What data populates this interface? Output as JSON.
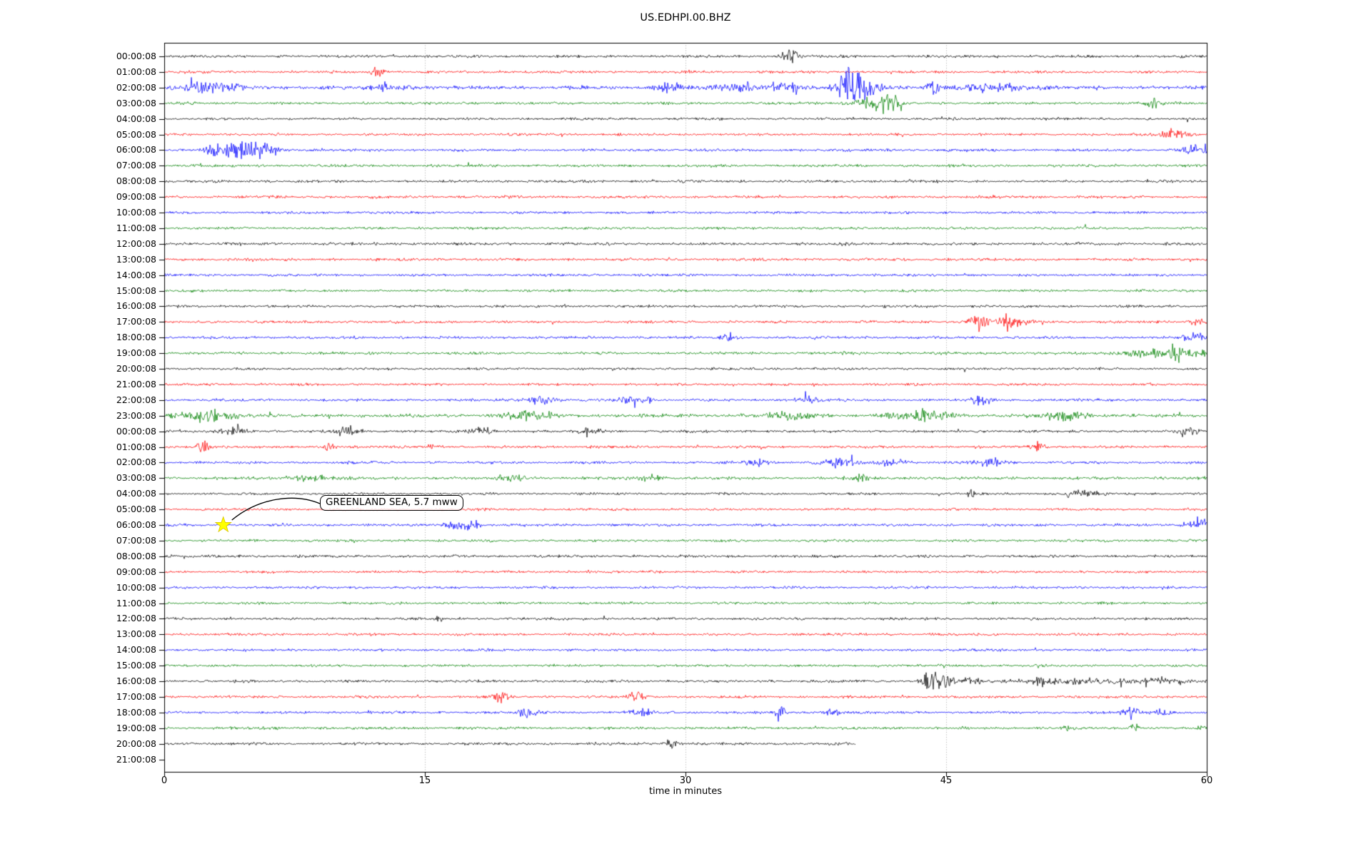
{
  "title": "US.EDHPI.00.BHZ",
  "chart_data": {
    "type": "line",
    "subtype": "seismic-helicorder-dayplot",
    "title": "US.EDHPI.00.BHZ",
    "xlabel": "time in minutes",
    "xlim": [
      0,
      60
    ],
    "xticks": [
      0,
      15,
      30,
      45,
      60
    ],
    "grid": {
      "vertical_dotted_at_minutes": [
        15,
        30,
        45
      ],
      "color": "#aaaaaa"
    },
    "trace_colors": {
      "black": "#000000",
      "red": "#ff0000",
      "blue": "#0000ff",
      "green": "#008000"
    },
    "legend_position": "none",
    "rows": [
      {
        "label": "00:00:08",
        "color": "black",
        "base": 1.0,
        "end": 60,
        "bursts": [
          [
            36,
            2.2,
            0.35
          ]
        ]
      },
      {
        "label": "01:00:08",
        "color": "red",
        "base": 1.0,
        "end": 60,
        "bursts": [
          [
            12.3,
            1.8,
            0.25
          ]
        ]
      },
      {
        "label": "02:00:08",
        "color": "blue",
        "base": 1.35,
        "end": 60,
        "bursts": [
          [
            2.5,
            1.2,
            1.2
          ],
          [
            13,
            0.8,
            0.8
          ],
          [
            29,
            1.4,
            0.5
          ],
          [
            33,
            0.9,
            0.8
          ],
          [
            35.8,
            1.6,
            0.5
          ],
          [
            39.3,
            4.2,
            0.45
          ],
          [
            40.3,
            2.6,
            0.7
          ],
          [
            44.2,
            2.2,
            0.2
          ],
          [
            48,
            0.9,
            1.5
          ]
        ]
      },
      {
        "label": "03:00:08",
        "color": "green",
        "base": 1.0,
        "end": 60,
        "bursts": [
          [
            40.5,
            1.2,
            0.8
          ],
          [
            41.7,
            3.2,
            0.4
          ],
          [
            57,
            1.8,
            0.3
          ]
        ]
      },
      {
        "label": "04:00:08",
        "color": "black",
        "base": 0.9,
        "end": 60,
        "bursts": []
      },
      {
        "label": "05:00:08",
        "color": "red",
        "base": 0.9,
        "end": 60,
        "bursts": [
          [
            58,
            1.6,
            0.7
          ]
        ]
      },
      {
        "label": "06:00:08",
        "color": "blue",
        "base": 1.05,
        "end": 60,
        "bursts": [
          [
            2.9,
            1.4,
            0.4
          ],
          [
            4.2,
            3.4,
            0.9
          ],
          [
            5.3,
            1.5,
            0.8
          ],
          [
            59.6,
            1.8,
            0.6
          ]
        ]
      },
      {
        "label": "07:00:08",
        "color": "green",
        "base": 1.0,
        "end": 60,
        "bursts": []
      },
      {
        "label": "08:00:08",
        "color": "black",
        "base": 1.0,
        "end": 60,
        "bursts": []
      },
      {
        "label": "09:00:08",
        "color": "red",
        "base": 1.05,
        "end": 60,
        "bursts": []
      },
      {
        "label": "10:00:08",
        "color": "blue",
        "base": 0.95,
        "end": 60,
        "bursts": []
      },
      {
        "label": "11:00:08",
        "color": "green",
        "base": 0.95,
        "end": 60,
        "bursts": []
      },
      {
        "label": "12:00:08",
        "color": "black",
        "base": 1.1,
        "end": 60,
        "bursts": []
      },
      {
        "label": "13:00:08",
        "color": "red",
        "base": 1.05,
        "end": 60,
        "bursts": []
      },
      {
        "label": "14:00:08",
        "color": "blue",
        "base": 0.95,
        "end": 60,
        "bursts": []
      },
      {
        "label": "15:00:08",
        "color": "green",
        "base": 0.95,
        "end": 60,
        "bursts": []
      },
      {
        "label": "16:00:08",
        "color": "black",
        "base": 0.95,
        "end": 60,
        "bursts": []
      },
      {
        "label": "17:00:08",
        "color": "red",
        "base": 1.0,
        "end": 60,
        "bursts": [
          [
            46.9,
            3.0,
            0.4
          ],
          [
            48.3,
            1.4,
            1.0
          ],
          [
            59.5,
            1.0,
            0.3
          ]
        ]
      },
      {
        "label": "18:00:08",
        "color": "blue",
        "base": 1.0,
        "end": 60,
        "bursts": [
          [
            32.5,
            1.6,
            0.25
          ],
          [
            59,
            1.4,
            0.5
          ]
        ]
      },
      {
        "label": "19:00:08",
        "color": "green",
        "base": 1.0,
        "end": 60,
        "bursts": [
          [
            56.5,
            1.3,
            1.2
          ],
          [
            58.3,
            2.2,
            0.3
          ],
          [
            59.5,
            1.6,
            0.4
          ]
        ]
      },
      {
        "label": "20:00:08",
        "color": "black",
        "base": 0.9,
        "end": 60,
        "bursts": []
      },
      {
        "label": "21:00:08",
        "color": "red",
        "base": 0.95,
        "end": 60,
        "bursts": []
      },
      {
        "label": "22:00:08",
        "color": "blue",
        "base": 1.0,
        "end": 60,
        "bursts": [
          [
            21.6,
            1.7,
            0.5
          ],
          [
            26.8,
            1.3,
            0.5
          ],
          [
            27.8,
            1.5,
            0.15
          ],
          [
            37,
            1.2,
            0.5
          ],
          [
            47,
            1.4,
            0.5
          ]
        ]
      },
      {
        "label": "23:00:08",
        "color": "green",
        "base": 1.3,
        "end": 60,
        "bursts": [
          [
            2.8,
            1.3,
            1.0
          ],
          [
            21,
            1.0,
            1.0
          ],
          [
            36,
            0.8,
            1.0
          ],
          [
            43.8,
            1.5,
            1.3
          ],
          [
            52,
            1.3,
            0.8
          ]
        ]
      },
      {
        "label": "00:00:08",
        "color": "black",
        "base": 1.0,
        "end": 60,
        "bursts": [
          [
            4,
            1.3,
            0.5
          ],
          [
            10.7,
            1.5,
            0.4
          ],
          [
            18.3,
            1.6,
            0.4
          ],
          [
            24.5,
            1.2,
            0.4
          ],
          [
            59,
            1.8,
            0.3
          ]
        ]
      },
      {
        "label": "01:00:08",
        "color": "red",
        "base": 1.0,
        "end": 60,
        "bursts": [
          [
            2.2,
            2.4,
            0.25
          ],
          [
            9.5,
            1.8,
            0.2
          ],
          [
            15.5,
            1.5,
            0.2
          ],
          [
            50.3,
            1.6,
            0.3
          ]
        ]
      },
      {
        "label": "02:00:08",
        "color": "blue",
        "base": 1.0,
        "end": 60,
        "bursts": [
          [
            34,
            1.4,
            0.5
          ],
          [
            39,
            1.6,
            0.7
          ],
          [
            42,
            1.0,
            0.6
          ],
          [
            47.5,
            1.5,
            0.5
          ]
        ]
      },
      {
        "label": "03:00:08",
        "color": "green",
        "base": 1.1,
        "end": 60,
        "bursts": [
          [
            8.5,
            0.9,
            0.8
          ],
          [
            20,
            1.1,
            0.5
          ],
          [
            28,
            0.9,
            0.5
          ],
          [
            40,
            0.9,
            0.5
          ]
        ]
      },
      {
        "label": "04:00:08",
        "color": "black",
        "base": 0.9,
        "end": 60,
        "bursts": [
          [
            46.5,
            2.0,
            0.15
          ],
          [
            52.8,
            1.3,
            0.7
          ]
        ]
      },
      {
        "label": "05:00:08",
        "color": "red",
        "base": 0.9,
        "end": 60,
        "bursts": []
      },
      {
        "label": "06:00:08",
        "color": "blue",
        "base": 1.0,
        "end": 60,
        "bursts": [
          [
            16.7,
            2.0,
            0.4
          ],
          [
            17.7,
            1.8,
            0.3
          ],
          [
            59.6,
            1.9,
            0.5
          ]
        ]
      },
      {
        "label": "07:00:08",
        "color": "green",
        "base": 0.95,
        "end": 60,
        "bursts": []
      },
      {
        "label": "08:00:08",
        "color": "black",
        "base": 1.0,
        "end": 60,
        "bursts": []
      },
      {
        "label": "09:00:08",
        "color": "red",
        "base": 0.95,
        "end": 60,
        "bursts": []
      },
      {
        "label": "10:00:08",
        "color": "blue",
        "base": 0.95,
        "end": 60,
        "bursts": []
      },
      {
        "label": "11:00:08",
        "color": "green",
        "base": 0.95,
        "end": 60,
        "bursts": []
      },
      {
        "label": "12:00:08",
        "color": "black",
        "base": 0.95,
        "end": 60,
        "bursts": [
          [
            15.8,
            1.5,
            0.12
          ]
        ]
      },
      {
        "label": "13:00:08",
        "color": "red",
        "base": 0.95,
        "end": 60,
        "bursts": []
      },
      {
        "label": "14:00:08",
        "color": "blue",
        "base": 0.95,
        "end": 60,
        "bursts": []
      },
      {
        "label": "15:00:08",
        "color": "green",
        "base": 0.95,
        "end": 60,
        "bursts": []
      },
      {
        "label": "16:00:08",
        "color": "black",
        "base": 1.0,
        "end": 60,
        "bursts": [
          [
            44.1,
            3.8,
            0.3
          ],
          [
            44.9,
            2.0,
            0.5
          ],
          [
            46.6,
            1.6,
            0.25
          ],
          [
            50.4,
            1.4,
            0.25
          ],
          [
            52.5,
            0.8,
            2.5
          ],
          [
            57,
            0.7,
            1.5
          ]
        ]
      },
      {
        "label": "17:00:08",
        "color": "red",
        "base": 1.0,
        "end": 60,
        "bursts": [
          [
            19.3,
            2.3,
            0.3
          ],
          [
            27.2,
            2.3,
            0.3
          ]
        ]
      },
      {
        "label": "18:00:08",
        "color": "blue",
        "base": 1.0,
        "end": 60,
        "bursts": [
          [
            21,
            1.3,
            0.5
          ],
          [
            27.5,
            1.5,
            0.4
          ],
          [
            35.5,
            2.2,
            0.2
          ],
          [
            38.5,
            1.5,
            0.3
          ],
          [
            55.6,
            1.9,
            0.4
          ],
          [
            57.5,
            1.4,
            0.3
          ]
        ]
      },
      {
        "label": "19:00:08",
        "color": "green",
        "base": 1.0,
        "end": 60,
        "bursts": [
          [
            51.9,
            1.9,
            0.15
          ],
          [
            55.8,
            1.9,
            0.15
          ],
          [
            59.7,
            1.2,
            0.3
          ]
        ]
      },
      {
        "label": "20:00:08",
        "color": "black",
        "base": 1.0,
        "end": 39.8,
        "bursts": [
          [
            29.1,
            1.7,
            0.25
          ]
        ]
      },
      {
        "label": "21:00:08",
        "color": "red",
        "base": 0.0,
        "end": 0,
        "bursts": []
      }
    ],
    "annotation": {
      "text": "GREENLAND SEA, 5.7 mww",
      "event_row_index": 30,
      "event_minute": 3.4,
      "marker": "star-icon",
      "marker_color": "#ffff00"
    }
  }
}
